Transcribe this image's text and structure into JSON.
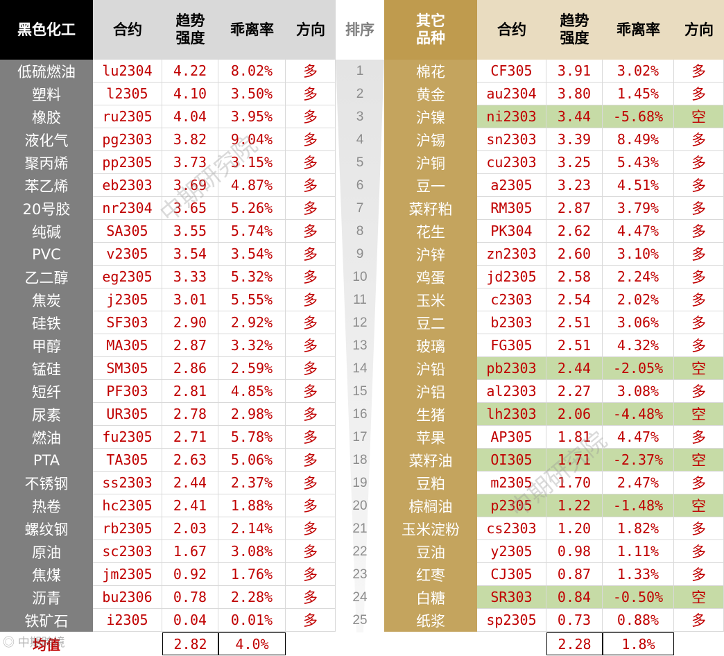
{
  "left_table": {
    "title": "黑色化工",
    "headers": [
      "合约",
      "趋势\n强度",
      "乖离率",
      "方向"
    ],
    "rows": [
      {
        "name": "低硫燃油",
        "contract": "lu2304",
        "strength": "4.22",
        "deviation": "8.02%",
        "direction": "多"
      },
      {
        "name": "塑料",
        "contract": "l2305",
        "strength": "4.10",
        "deviation": "3.50%",
        "direction": "多"
      },
      {
        "name": "橡胶",
        "contract": "ru2305",
        "strength": "4.04",
        "deviation": "3.95%",
        "direction": "多"
      },
      {
        "name": "液化气",
        "contract": "pg2303",
        "strength": "3.82",
        "deviation": "9.04%",
        "direction": "多"
      },
      {
        "name": "聚丙烯",
        "contract": "pp2305",
        "strength": "3.73",
        "deviation": "3.15%",
        "direction": "多"
      },
      {
        "name": "苯乙烯",
        "contract": "eb2303",
        "strength": "3.69",
        "deviation": "4.87%",
        "direction": "多"
      },
      {
        "name": "20号胶",
        "contract": "nr2304",
        "strength": "3.65",
        "deviation": "5.26%",
        "direction": "多"
      },
      {
        "name": "纯碱",
        "contract": "SA305",
        "strength": "3.55",
        "deviation": "5.74%",
        "direction": "多"
      },
      {
        "name": "PVC",
        "contract": "v2305",
        "strength": "3.54",
        "deviation": "3.54%",
        "direction": "多"
      },
      {
        "name": "乙二醇",
        "contract": "eg2305",
        "strength": "3.33",
        "deviation": "5.32%",
        "direction": "多"
      },
      {
        "name": "焦炭",
        "contract": "j2305",
        "strength": "3.01",
        "deviation": "5.55%",
        "direction": "多"
      },
      {
        "name": "硅铁",
        "contract": "SF303",
        "strength": "2.90",
        "deviation": "2.92%",
        "direction": "多"
      },
      {
        "name": "甲醇",
        "contract": "MA305",
        "strength": "2.87",
        "deviation": "3.32%",
        "direction": "多"
      },
      {
        "name": "锰硅",
        "contract": "SM305",
        "strength": "2.86",
        "deviation": "2.59%",
        "direction": "多"
      },
      {
        "name": "短纤",
        "contract": "PF303",
        "strength": "2.81",
        "deviation": "4.85%",
        "direction": "多"
      },
      {
        "name": "尿素",
        "contract": "UR305",
        "strength": "2.78",
        "deviation": "2.98%",
        "direction": "多"
      },
      {
        "name": "燃油",
        "contract": "fu2305",
        "strength": "2.71",
        "deviation": "5.78%",
        "direction": "多"
      },
      {
        "name": "PTA",
        "contract": "TA305",
        "strength": "2.63",
        "deviation": "5.06%",
        "direction": "多"
      },
      {
        "name": "不锈钢",
        "contract": "ss2303",
        "strength": "2.44",
        "deviation": "2.37%",
        "direction": "多"
      },
      {
        "name": "热卷",
        "contract": "hc2305",
        "strength": "2.41",
        "deviation": "1.88%",
        "direction": "多"
      },
      {
        "name": "螺纹钢",
        "contract": "rb2305",
        "strength": "2.03",
        "deviation": "2.14%",
        "direction": "多"
      },
      {
        "name": "原油",
        "contract": "sc2303",
        "strength": "1.67",
        "deviation": "3.08%",
        "direction": "多"
      },
      {
        "name": "焦煤",
        "contract": "jm2305",
        "strength": "0.92",
        "deviation": "1.76%",
        "direction": "多"
      },
      {
        "name": "沥青",
        "contract": "bu2306",
        "strength": "0.78",
        "deviation": "2.28%",
        "direction": "多"
      },
      {
        "name": "铁矿石",
        "contract": "i2305",
        "strength": "0.04",
        "deviation": "0.01%",
        "direction": "多"
      }
    ],
    "average": {
      "label": "均值",
      "strength": "2.82",
      "deviation": "4.0%"
    }
  },
  "rank_column": {
    "header": "排序",
    "values": [
      "1",
      "2",
      "3",
      "4",
      "5",
      "6",
      "7",
      "8",
      "9",
      "10",
      "11",
      "12",
      "13",
      "14",
      "15",
      "16",
      "17",
      "18",
      "19",
      "20",
      "21",
      "22",
      "23",
      "24",
      "25"
    ]
  },
  "right_table": {
    "title": "其它\n品种",
    "headers": [
      "合约",
      "趋势\n强度",
      "乖离率",
      "方向"
    ],
    "rows": [
      {
        "name": "棉花",
        "contract": "CF305",
        "strength": "3.91",
        "deviation": "3.02%",
        "direction": "多",
        "highlight": false
      },
      {
        "name": "黄金",
        "contract": "au2304",
        "strength": "3.80",
        "deviation": "1.45%",
        "direction": "多",
        "highlight": false
      },
      {
        "name": "沪镍",
        "contract": "ni2303",
        "strength": "3.44",
        "deviation": "-5.68%",
        "direction": "空",
        "highlight": true
      },
      {
        "name": "沪锡",
        "contract": "sn2303",
        "strength": "3.39",
        "deviation": "8.49%",
        "direction": "多",
        "highlight": false
      },
      {
        "name": "沪铜",
        "contract": "cu2303",
        "strength": "3.25",
        "deviation": "5.43%",
        "direction": "多",
        "highlight": false
      },
      {
        "name": "豆一",
        "contract": "a2305",
        "strength": "3.23",
        "deviation": "4.51%",
        "direction": "多",
        "highlight": false
      },
      {
        "name": "菜籽粕",
        "contract": "RM305",
        "strength": "2.87",
        "deviation": "3.79%",
        "direction": "多",
        "highlight": false
      },
      {
        "name": "花生",
        "contract": "PK304",
        "strength": "2.62",
        "deviation": "4.47%",
        "direction": "多",
        "highlight": false
      },
      {
        "name": "沪锌",
        "contract": "zn2303",
        "strength": "2.60",
        "deviation": "3.10%",
        "direction": "多",
        "highlight": false
      },
      {
        "name": "鸡蛋",
        "contract": "jd2305",
        "strength": "2.58",
        "deviation": "2.24%",
        "direction": "多",
        "highlight": false
      },
      {
        "name": "玉米",
        "contract": "c2303",
        "strength": "2.54",
        "deviation": "2.02%",
        "direction": "多",
        "highlight": false
      },
      {
        "name": "豆二",
        "contract": "b2303",
        "strength": "2.51",
        "deviation": "3.06%",
        "direction": "多",
        "highlight": false
      },
      {
        "name": "玻璃",
        "contract": "FG305",
        "strength": "2.51",
        "deviation": "4.32%",
        "direction": "多",
        "highlight": false
      },
      {
        "name": "沪铅",
        "contract": "pb2303",
        "strength": "2.44",
        "deviation": "-2.05%",
        "direction": "空",
        "highlight": true
      },
      {
        "name": "沪铝",
        "contract": "al2303",
        "strength": "2.27",
        "deviation": "3.08%",
        "direction": "多",
        "highlight": false
      },
      {
        "name": "生猪",
        "contract": "lh2303",
        "strength": "2.06",
        "deviation": "-4.48%",
        "direction": "空",
        "highlight": true
      },
      {
        "name": "苹果",
        "contract": "AP305",
        "strength": "1.81",
        "deviation": "4.47%",
        "direction": "多",
        "highlight": false
      },
      {
        "name": "菜籽油",
        "contract": "OI305",
        "strength": "1.71",
        "deviation": "-2.37%",
        "direction": "空",
        "highlight": true
      },
      {
        "name": "豆粕",
        "contract": "m2305",
        "strength": "1.70",
        "deviation": "2.47%",
        "direction": "多",
        "highlight": false
      },
      {
        "name": "棕榈油",
        "contract": "p2305",
        "strength": "1.22",
        "deviation": "-1.48%",
        "direction": "空",
        "highlight": true
      },
      {
        "name": "玉米淀粉",
        "contract": "cs2303",
        "strength": "1.20",
        "deviation": "1.82%",
        "direction": "多",
        "highlight": false
      },
      {
        "name": "豆油",
        "contract": "y2305",
        "strength": "0.98",
        "deviation": "1.11%",
        "direction": "多",
        "highlight": false
      },
      {
        "name": "红枣",
        "contract": "CJ305",
        "strength": "0.87",
        "deviation": "1.33%",
        "direction": "多",
        "highlight": false
      },
      {
        "name": "白糖",
        "contract": "SR303",
        "strength": "0.84",
        "deviation": "-0.50%",
        "direction": "空",
        "highlight": true
      },
      {
        "name": "纸浆",
        "contract": "sp2305",
        "strength": "0.73",
        "deviation": "0.88%",
        "direction": "多",
        "highlight": false
      }
    ],
    "average": {
      "strength": "2.28",
      "deviation": "1.8%"
    }
  },
  "watermarks": [
    "中期研究院",
    "中期研究院"
  ],
  "logo_text": "中期跨境",
  "colors": {
    "red": "#c00000",
    "green_highlight": "#c6dba6",
    "dark_gray": "#7f7f7f",
    "gold": "#bf9b4e",
    "beige": "#e9dcc0",
    "light_gray": "#d9d9d9"
  }
}
